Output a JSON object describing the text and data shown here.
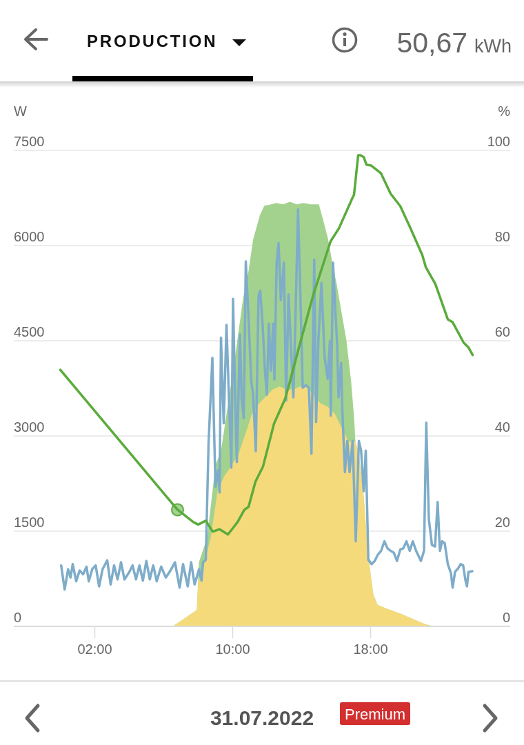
{
  "chart_data": {
    "type": "line",
    "title": "PRODUCTION",
    "subtitle": "50,67 kWh",
    "ylabel": "W",
    "y2label": "%",
    "annotations": [
      "31.07.2022",
      "Premium"
    ],
    "xlim": [
      -2.7,
      26.1
    ],
    "xticks": [
      {
        "value": 2,
        "label": "02:00"
      },
      {
        "value": 10,
        "label": "10:00"
      },
      {
        "value": 18,
        "label": "18:00"
      }
    ],
    "ylim": [
      0,
      7500
    ],
    "yticks": [
      0,
      1500,
      3000,
      4500,
      6000,
      7500
    ],
    "y2lim": [
      0,
      100
    ],
    "y2ticks": [
      0,
      20,
      40,
      60,
      80,
      100
    ],
    "grid": "y",
    "series": [
      {
        "type": "area",
        "color": "#a3d28e",
        "x": [
          6.52,
          7.12,
          7.72,
          7.92,
          8.04,
          8.52,
          9.0,
          9.32,
          10.12,
          10.6,
          10.92,
          11.18,
          11.58,
          11.84,
          12.12,
          12.52,
          12.92,
          13.32,
          13.72,
          14.12,
          14.52,
          15.0,
          15.24,
          15.52,
          15.78,
          16.04,
          16.32,
          16.6,
          16.87,
          17.05,
          17.12,
          17.32,
          17.6,
          17.84,
          18.04,
          18.16,
          18.4,
          18.92,
          19.72,
          20.52,
          21.2,
          21.72
        ],
        "values": [
          0,
          110,
          220,
          260,
          1010,
          1400,
          2540,
          2760,
          4210,
          5160,
          5600,
          6090,
          6480,
          6630,
          6640,
          6670,
          6650,
          6690,
          6650,
          6670,
          6650,
          6650,
          6410,
          6120,
          5730,
          5380,
          4940,
          4500,
          3860,
          3260,
          2910,
          2700,
          2040,
          1170,
          740,
          500,
          340,
          280,
          200,
          110,
          30,
          0
        ]
      },
      {
        "type": "area",
        "color": "#f5da7c",
        "x": [
          6.52,
          7.12,
          7.72,
          7.92,
          8.0,
          8.32,
          8.72,
          9.12,
          9.52,
          9.92,
          10.32,
          10.72,
          11.12,
          11.52,
          11.92,
          12.32,
          12.72,
          13.12,
          13.52,
          13.92,
          14.32,
          14.72,
          15.12,
          15.52,
          15.92,
          16.32,
          16.72,
          17.12,
          17.32,
          17.6,
          17.84,
          18.04,
          18.16,
          18.4,
          18.92,
          19.72,
          20.52,
          21.2,
          21.72
        ],
        "values": [
          0,
          110,
          220,
          260,
          690,
          960,
          1390,
          2130,
          2370,
          2530,
          2700,
          3020,
          3350,
          3510,
          3620,
          3730,
          3780,
          3730,
          3730,
          3780,
          3780,
          3620,
          3510,
          3460,
          3350,
          3130,
          2910,
          2910,
          2700,
          2040,
          1170,
          740,
          500,
          340,
          280,
          200,
          110,
          30,
          0
        ]
      },
      {
        "color": "#7eacc9",
        "x": [
          0.05,
          0.25,
          0.45,
          0.59,
          0.72,
          0.92,
          1.12,
          1.32,
          1.52,
          1.65,
          1.85,
          2.05,
          2.25,
          2.45,
          2.72,
          2.92,
          3.12,
          3.32,
          3.52,
          3.72,
          3.99,
          4.19,
          4.39,
          4.59,
          4.79,
          4.99,
          5.19,
          5.39,
          5.59,
          5.85,
          6.12,
          6.39,
          6.65,
          6.92,
          7.12,
          7.39,
          7.59,
          7.79,
          8.05,
          8.19,
          8.28,
          8.44,
          8.6,
          8.82,
          9.0,
          9.16,
          9.24,
          9.32,
          9.48,
          9.64,
          9.8,
          9.92,
          10.02,
          10.12,
          10.24,
          10.42,
          10.52,
          10.64,
          10.76,
          10.92,
          11.08,
          11.18,
          11.34,
          11.5,
          11.6,
          11.74,
          11.88,
          11.98,
          12.1,
          12.22,
          12.35,
          12.42,
          12.55,
          12.66,
          12.79,
          12.97,
          13.1,
          13.24,
          13.39,
          13.52,
          13.64,
          13.79,
          13.93,
          14.06,
          14.24,
          14.42,
          14.57,
          14.73,
          14.84,
          14.97,
          15.15,
          15.33,
          15.51,
          15.64,
          15.69,
          15.82,
          15.96,
          16.06,
          16.14,
          16.29,
          16.36,
          16.51,
          16.65,
          16.78,
          16.96,
          17.14,
          17.32,
          17.45,
          17.6,
          17.72,
          17.87,
          18.06,
          18.24,
          18.42,
          18.61,
          18.8,
          18.98,
          19.16,
          19.35,
          19.53,
          19.72,
          19.9,
          20.08,
          20.27,
          20.45,
          20.64,
          20.92,
          21.1,
          21.23,
          21.38,
          21.56,
          21.74,
          21.89,
          22.02,
          22.15,
          22.3,
          22.48,
          22.66,
          22.76,
          22.9,
          23.07,
          23.22,
          23.37,
          23.5,
          23.59,
          23.68,
          23.77,
          23.9
        ],
        "values": [
          960,
          580,
          900,
          770,
          980,
          710,
          880,
          820,
          940,
          710,
          900,
          960,
          630,
          900,
          1040,
          660,
          960,
          740,
          1010,
          740,
          850,
          960,
          740,
          960,
          720,
          1030,
          740,
          960,
          710,
          940,
          770,
          880,
          1010,
          610,
          980,
          630,
          1010,
          660,
          900,
          720,
          1010,
          1050,
          2890,
          4230,
          2200,
          2460,
          2110,
          4550,
          3200,
          4750,
          3460,
          2500,
          5160,
          3860,
          2590,
          4600,
          3590,
          3280,
          5750,
          4860,
          3850,
          3670,
          2760,
          5210,
          5290,
          4730,
          3990,
          3650,
          4770,
          4030,
          4770,
          3890,
          5730,
          6040,
          5140,
          5730,
          3560,
          5230,
          4350,
          3610,
          4840,
          6570,
          5190,
          3760,
          3800,
          3760,
          2720,
          5780,
          3220,
          4500,
          5410,
          4250,
          3900,
          4500,
          3320,
          5730,
          4940,
          4450,
          3610,
          4150,
          3410,
          2430,
          2920,
          2430,
          2920,
          1340,
          2920,
          2770,
          2130,
          2770,
          1050,
          980,
          1030,
          1130,
          1190,
          1340,
          1230,
          1190,
          1160,
          1030,
          1210,
          1230,
          1340,
          1190,
          1340,
          1190,
          1030,
          1190,
          3210,
          1690,
          1280,
          1260,
          1960,
          1190,
          1340,
          1310,
          980,
          840,
          610,
          860,
          910,
          980,
          960,
          730,
          630,
          860,
          860,
          870
        ]
      },
      {
        "axis": "y2",
        "color": "#5aab3c",
        "x": [
          0,
          3.4,
          6.8,
          7.72,
          8.0,
          8.44,
          8.84,
          9.24,
          9.72,
          9.96,
          10.28,
          10.68,
          10.92,
          11.32,
          11.76,
          12.4,
          13.04,
          13.32,
          13.8,
          14.68,
          15.68,
          16.16,
          16.96,
          17.04,
          17.28,
          17.4,
          17.6,
          17.76,
          18.04,
          18.6,
          19.16,
          19.72,
          20.28,
          21.0,
          21.2,
          21.76,
          22.48,
          22.76,
          23.4,
          23.68,
          23.92
        ],
        "values": [
          53.9,
          39.2,
          24.5,
          21.9,
          21.4,
          22.2,
          19.9,
          20.4,
          19.3,
          20.4,
          21.9,
          24.5,
          25.1,
          30.4,
          33.6,
          42.6,
          47.8,
          51.4,
          58.0,
          69.7,
          80.9,
          83.6,
          90.1,
          90.7,
          99.0,
          99.0,
          98.6,
          97.0,
          96.8,
          95.2,
          90.9,
          88.3,
          83.9,
          78.0,
          75.5,
          71.9,
          64.5,
          63.9,
          59.6,
          58.6,
          57.0
        ]
      },
      {
        "type": "scatter",
        "axis": "y2",
        "color": "#5aab3c",
        "marker": "circle",
        "x": [
          6.8
        ],
        "values": [
          24.5
        ]
      }
    ]
  }
}
